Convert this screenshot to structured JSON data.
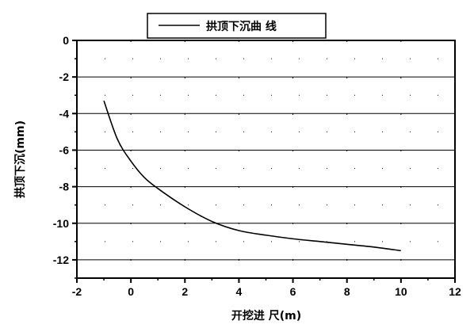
{
  "chart_data": {
    "type": "line",
    "xlabel": "开挖进  尺(m)",
    "ylabel": "拱顶下沉(mm)",
    "xlim": [
      -2,
      12
    ],
    "ylim": [
      -13,
      0
    ],
    "x_ticks": [
      "-2",
      "0",
      "2",
      "4",
      "6",
      "8",
      "10",
      "12"
    ],
    "y_ticks": [
      "0",
      "-2",
      "-4",
      "-6",
      "-8",
      "-10",
      "-12"
    ],
    "grid": "horizontal-solid, dashed-minor",
    "legend": {
      "position": "top-center",
      "label": "拱顶下沉曲 线"
    },
    "series": [
      {
        "name": "拱顶下沉曲 线",
        "color": "#000000",
        "x": [
          -1,
          -0.5,
          0,
          0.5,
          1,
          2,
          3,
          4,
          5,
          6,
          7,
          8,
          9,
          10
        ],
        "y": [
          -3.3,
          -5.4,
          -6.6,
          -7.5,
          -8.1,
          -9.1,
          -9.9,
          -10.4,
          -10.65,
          -10.85,
          -11.0,
          -11.15,
          -11.3,
          -11.5
        ]
      }
    ]
  }
}
